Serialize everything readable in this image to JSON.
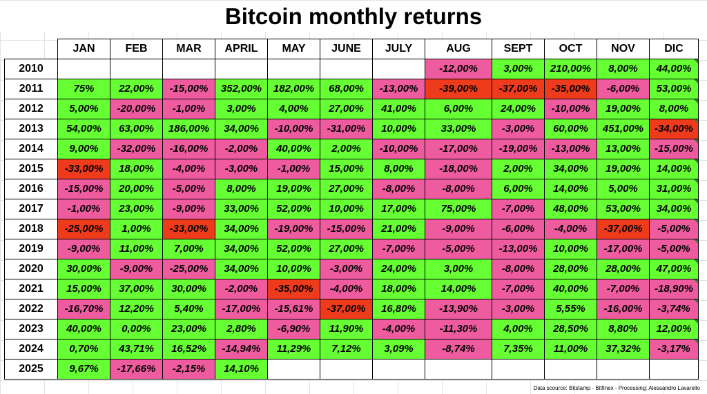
{
  "title": "Bitcoin monthly returns",
  "months": [
    "JAN",
    "FEB",
    "MAR",
    "APRIL",
    "MAY",
    "JUNE",
    "JULY",
    "AUG",
    "SEPT",
    "OCT",
    "NOV",
    "DIC"
  ],
  "colors": {
    "positive": "#66ff33",
    "negative": "#ee5c9f",
    "strong_negative": "#ee3b1c"
  },
  "rows": [
    {
      "year": "2010",
      "values": [
        "",
        "",
        "",
        "",
        "",
        "",
        "",
        "-12,00%",
        "3,00%",
        "210,00%",
        "8,00%",
        "44,00%"
      ]
    },
    {
      "year": "2011",
      "values": [
        "75%",
        "22,00%",
        "-15,00%",
        "352,00%",
        "182,00%",
        "68,00%",
        "-13,00%",
        "-39,00%",
        "-37,00%",
        "-35,00%",
        "-6,00%",
        "53,00%"
      ]
    },
    {
      "year": "2012",
      "values": [
        "5,00%",
        "-20,00%",
        "-1,00%",
        "3,00%",
        "4,00%",
        "27,00%",
        "41,00%",
        "6,00%",
        "24,00%",
        "-10,00%",
        "19,00%",
        "8,00%"
      ]
    },
    {
      "year": "2013",
      "values": [
        "54,00%",
        "63,00%",
        "186,00%",
        "34,00%",
        "-10,00%",
        "-31,00%",
        "10,00%",
        "33,00%",
        "-3,00%",
        "60,00%",
        "451,00%",
        "-34,00%"
      ]
    },
    {
      "year": "2014",
      "values": [
        "9,00%",
        "-32,00%",
        "-16,00%",
        "-2,00%",
        "40,00%",
        "2,00%",
        "-10,00%",
        "-17,00%",
        "-19,00%",
        "-13,00%",
        "13,00%",
        "-15,00%"
      ]
    },
    {
      "year": "2015",
      "values": [
        "-33,00%",
        "18,00%",
        "-4,00%",
        "-3,00%",
        "-1,00%",
        "15,00%",
        "8,00%",
        "-18,00%",
        "2,00%",
        "34,00%",
        "19,00%",
        "14,00%"
      ]
    },
    {
      "year": "2016",
      "values": [
        "-15,00%",
        "20,00%",
        "-5,00%",
        "8,00%",
        "19,00%",
        "27,00%",
        "-8,00%",
        "-8,00%",
        "6,00%",
        "14,00%",
        "5,00%",
        "31,00%"
      ]
    },
    {
      "year": "2017",
      "values": [
        "-1,00%",
        "23,00%",
        "-9,00%",
        "33,00%",
        "52,00%",
        "10,00%",
        "17,00%",
        "75,00%",
        "-7,00%",
        "48,00%",
        "53,00%",
        "34,00%"
      ]
    },
    {
      "year": "2018",
      "values": [
        "-25,00%",
        "1,00%",
        "-33,00%",
        "34,00%",
        "-19,00%",
        "-15,00%",
        "21,00%",
        "-9,00%",
        "-6,00%",
        "-4,00%",
        "-37,00%",
        "-5,00%"
      ]
    },
    {
      "year": "2019",
      "values": [
        "-9,00%",
        "11,00%",
        "7,00%",
        "34,00%",
        "52,00%",
        "27,00%",
        "-7,00%",
        "-5,00%",
        "-13,00%",
        "10,00%",
        "-17,00%",
        "-5,00%"
      ]
    },
    {
      "year": "2020",
      "values": [
        "30,00%",
        "-9,00%",
        "-25,00%",
        "34,00%",
        "10,00%",
        "-3,00%",
        "24,00%",
        "3,00%",
        "-8,00%",
        "28,00%",
        "28,00%",
        "47,00%"
      ]
    },
    {
      "year": "2021",
      "values": [
        "15,00%",
        "37,00%",
        "30,00%",
        "-2,00%",
        "-35,00%",
        "-4,00%",
        "18,00%",
        "14,00%",
        "-7,00%",
        "40,00%",
        "-7,00%",
        "-18,90%"
      ]
    },
    {
      "year": "2022",
      "values": [
        "-16,70%",
        "12,20%",
        "5,40%",
        "-17,00%",
        "-15,61%",
        "-37,00%",
        "16,80%",
        "-13,90%",
        "-3,00%",
        "5,55%",
        "-16,00%",
        "-3,74%"
      ]
    },
    {
      "year": "2023",
      "values": [
        "40,00%",
        "0,00%",
        "23,00%",
        "2,80%",
        "-6,90%",
        "11,90%",
        "-4,00%",
        "-11,30%",
        "4,00%",
        "28,50%",
        "8,80%",
        "12,00%"
      ]
    },
    {
      "year": "2024",
      "values": [
        "0,70%",
        "43,71%",
        "16,52%",
        "-14,94%",
        "11,29%",
        "7,12%",
        "3,09%",
        "-8,74%",
        "7,35%",
        "11,00%",
        "37,32%",
        "-3,17%"
      ]
    },
    {
      "year": "2025",
      "values": [
        "9,67%",
        "-17,66%",
        "-2,15%",
        "14,10%",
        "",
        "",
        "",
        "",
        "",
        "",
        "",
        ""
      ]
    }
  ],
  "strong_negative_cells": [
    [
      "2011",
      "AUG"
    ],
    [
      "2011",
      "SEPT"
    ],
    [
      "2011",
      "OCT"
    ],
    [
      "2013",
      "DIC"
    ],
    [
      "2015",
      "JAN"
    ],
    [
      "2018",
      "JAN"
    ],
    [
      "2018",
      "MAR"
    ],
    [
      "2018",
      "NOV"
    ],
    [
      "2021",
      "MAY"
    ],
    [
      "2022",
      "JUNE"
    ]
  ],
  "footer": "Data scource: Bitstamp - Bitfinex - Processing: Alessandro Lavarello"
}
